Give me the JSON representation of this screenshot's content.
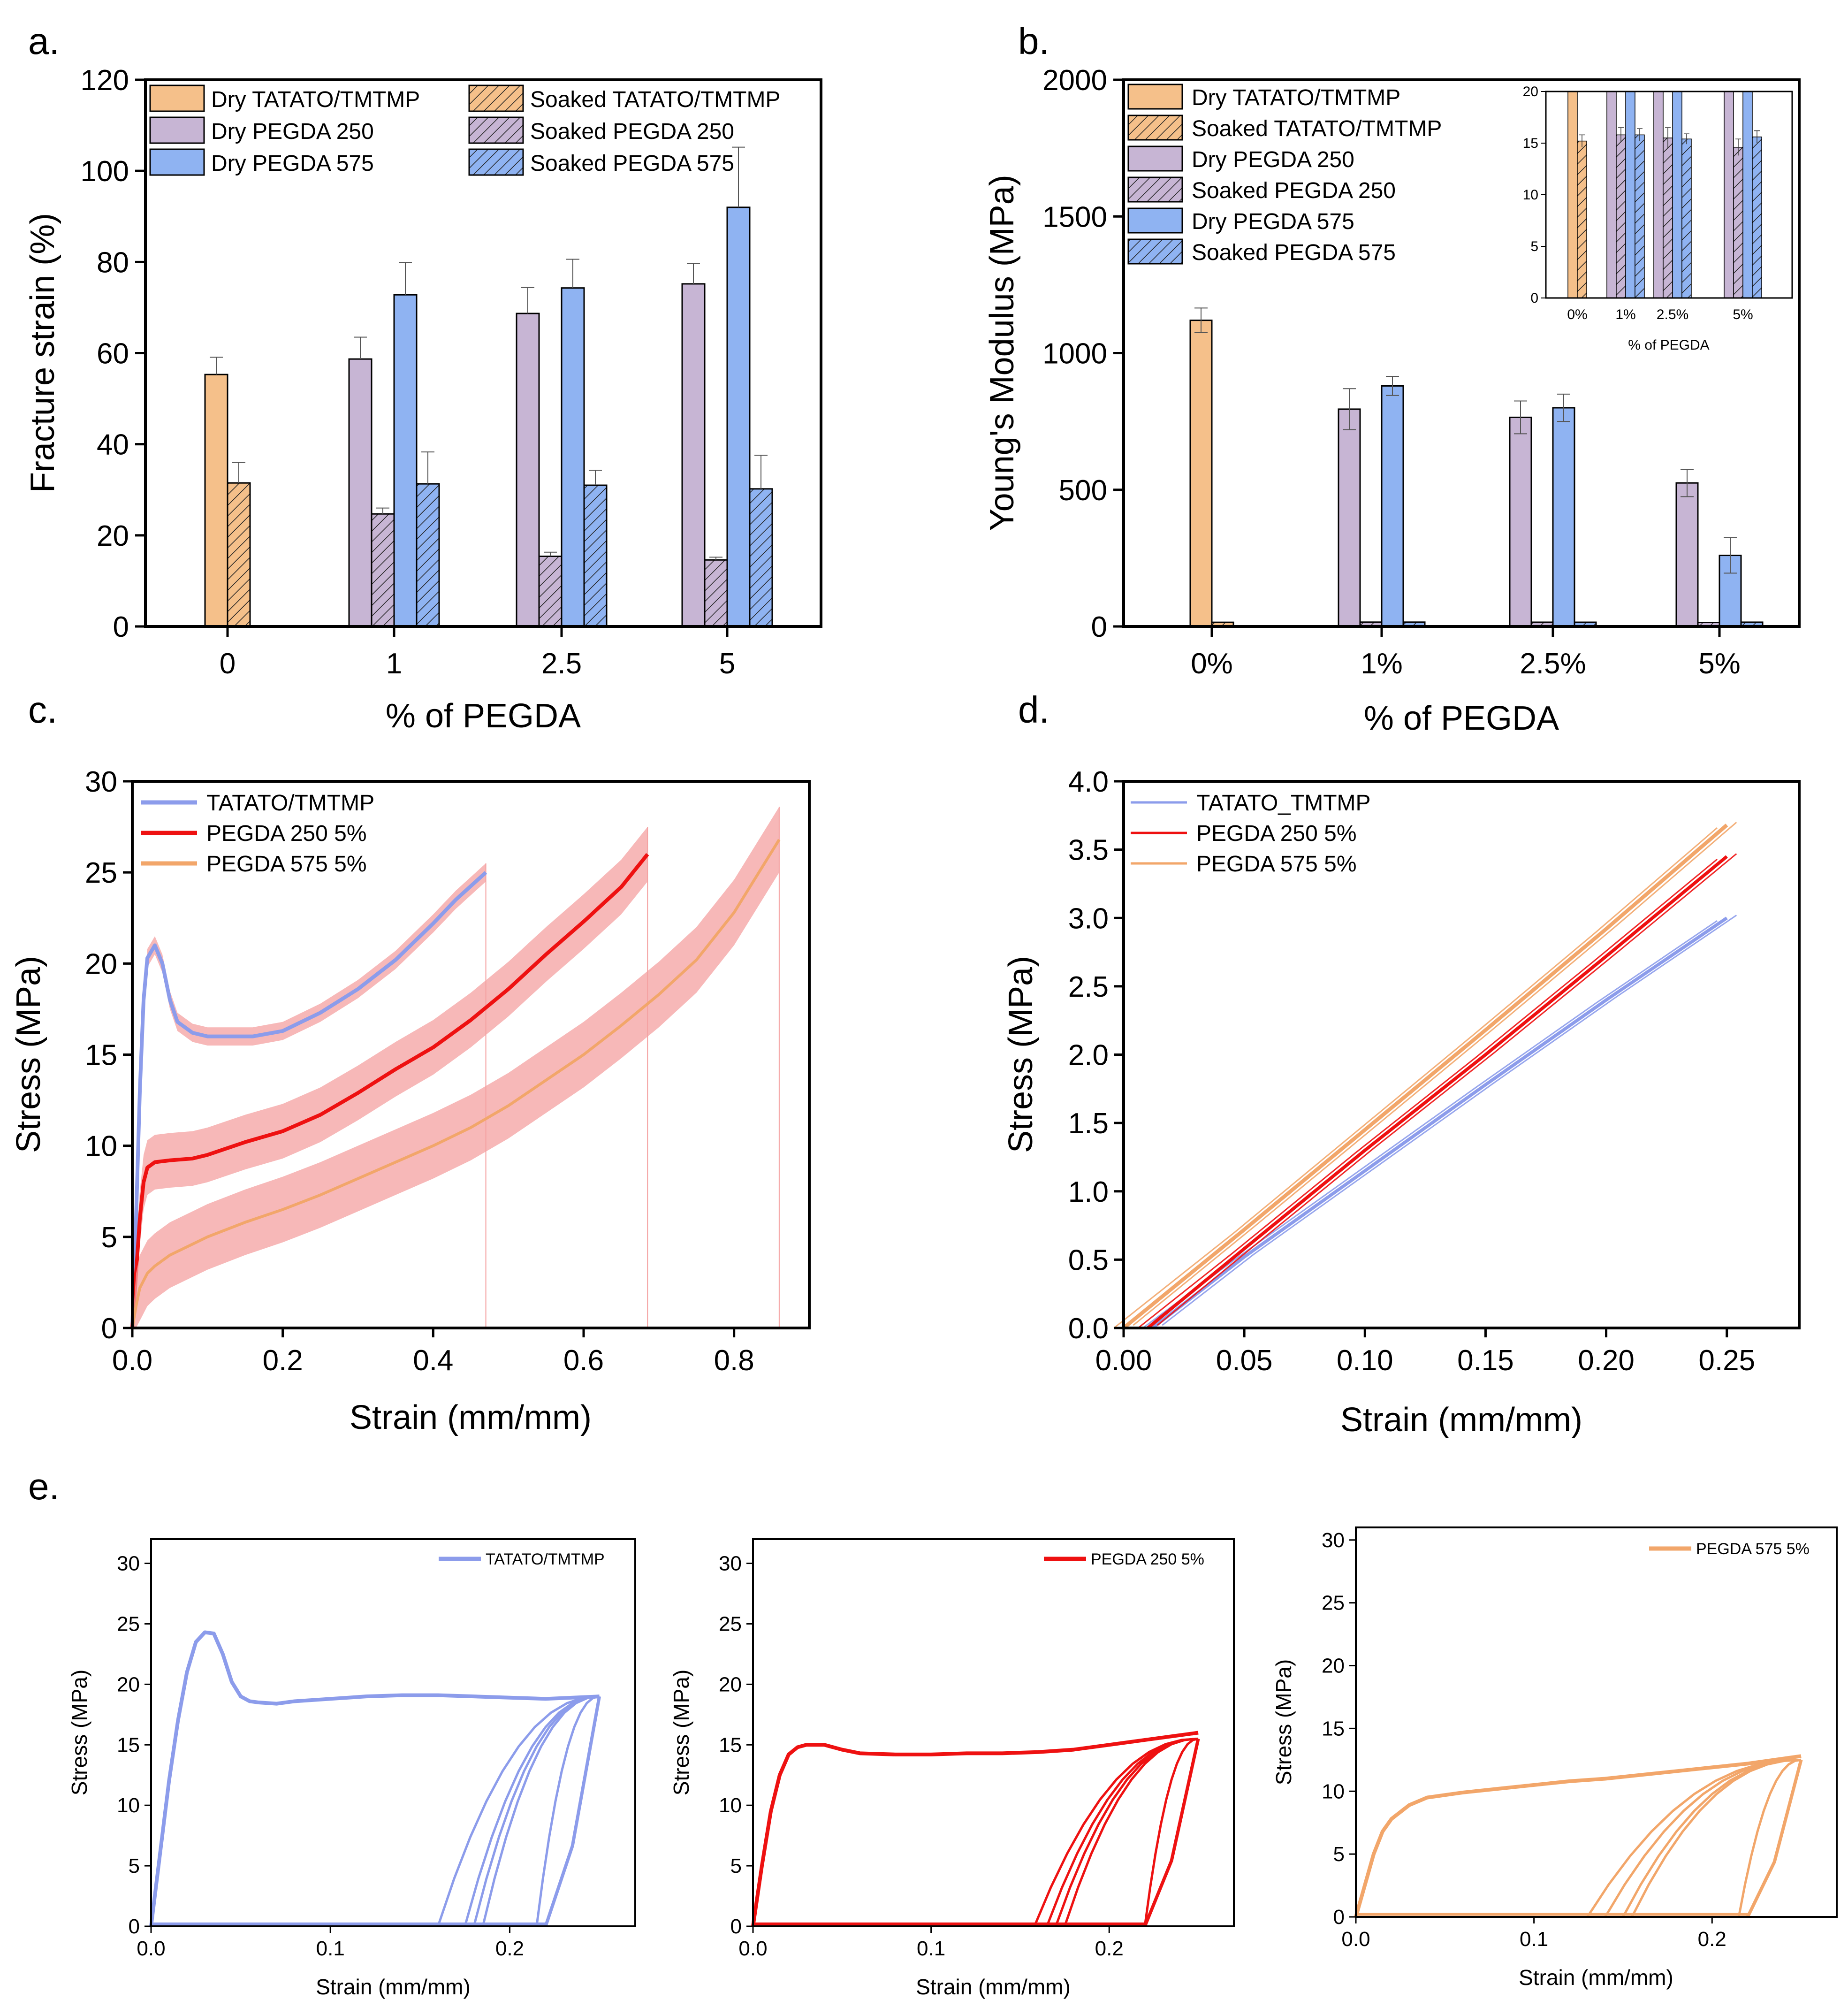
{
  "colors": {
    "tatato": "#F5C08A",
    "tatato_edge": "#9a6a3a",
    "peg250": "#C7B5D4",
    "peg250_edge": "#6a5a78",
    "peg575": "#8FB3F2",
    "peg575_edge": "#3d5f9e",
    "line_tatato": "#8C9CEB",
    "line_peg250": "#EE1111",
    "line_peg575": "#F2A66A",
    "band": "#F4A0A0",
    "axis": "#000000"
  },
  "chart_data": [
    {
      "id": "a",
      "panel_label": "a.",
      "type": "bar",
      "xlabel": "% of PEGDA",
      "ylabel": "Fracture strain (%)",
      "ylim": [
        0,
        120
      ],
      "yticks": [
        "0",
        "20",
        "40",
        "60",
        "80",
        "100",
        "120"
      ],
      "categories": [
        "0",
        "1",
        "2.5",
        "5"
      ],
      "legend": {
        "left": [
          "Dry TATATO/TMTMP",
          "Dry PEGDA 250",
          "Dry PEGDA 575"
        ],
        "right": [
          "Soaked TATATO/TMTMP",
          "Soaked PEGDA 250",
          "Soaked PEGDA 575"
        ]
      },
      "series": [
        {
          "name": "Dry TATATO/TMTMP",
          "values": [
            55.3,
            null,
            null,
            null
          ],
          "errors": [
            3.8,
            null,
            null,
            null
          ]
        },
        {
          "name": "Soaked TATATO/TMTMP",
          "values": [
            31.5,
            null,
            null,
            null
          ],
          "errors": [
            4.5,
            null,
            null,
            null
          ]
        },
        {
          "name": "Dry PEGDA 250",
          "values": [
            null,
            58.7,
            68.7,
            75.2
          ],
          "errors": [
            null,
            4.8,
            5.7,
            4.5
          ]
        },
        {
          "name": "Soaked PEGDA 250",
          "values": [
            null,
            24.7,
            15.4,
            14.6
          ],
          "errors": [
            null,
            1.3,
            0.9,
            0.6
          ]
        },
        {
          "name": "Dry PEGDA 575",
          "values": [
            null,
            72.8,
            74.3,
            92.0
          ],
          "errors": [
            null,
            7.1,
            6.3,
            13.2
          ]
        },
        {
          "name": "Soaked PEGDA 575",
          "values": [
            null,
            31.3,
            31.0,
            30.2
          ],
          "errors": [
            null,
            7.0,
            3.3,
            7.4
          ]
        }
      ]
    },
    {
      "id": "b",
      "panel_label": "b.",
      "type": "bar",
      "xlabel": "% of PEGDA",
      "ylabel": "Young's Modulus (MPa)",
      "ylim": [
        0,
        2000
      ],
      "yticks": [
        "0",
        "500",
        "1000",
        "1500",
        "2000"
      ],
      "categories": [
        "0%",
        "1%",
        "2.5%",
        "5%"
      ],
      "legend": [
        "Dry TATATO/TMTMP",
        "Soaked TATATO/TMTMP",
        "Dry PEGDA 250",
        "Soaked PEGDA 250",
        "Dry PEGDA 575",
        "Soaked PEGDA 575"
      ],
      "series": [
        {
          "name": "Dry TATATO/TMTMP",
          "values": [
            1120,
            null,
            null,
            null
          ],
          "errors": [
            45,
            null,
            null,
            null
          ]
        },
        {
          "name": "Soaked TATATO/TMTMP",
          "values": [
            15.2,
            null,
            null,
            null
          ],
          "errors": [
            0.6,
            null,
            null,
            null
          ]
        },
        {
          "name": "Dry PEGDA 250",
          "values": [
            null,
            795,
            765,
            525
          ],
          "errors": [
            null,
            75,
            60,
            50
          ]
        },
        {
          "name": "Soaked PEGDA 250",
          "values": [
            null,
            15.8,
            15.5,
            14.6
          ],
          "errors": [
            null,
            0.7,
            1.0,
            0.8
          ]
        },
        {
          "name": "Dry PEGDA 575",
          "values": [
            null,
            880,
            800,
            260
          ],
          "errors": [
            null,
            35,
            50,
            65
          ]
        },
        {
          "name": "Soaked PEGDA 575",
          "values": [
            null,
            15.8,
            15.4,
            15.6
          ],
          "errors": [
            null,
            0.6,
            0.5,
            0.6
          ]
        }
      ],
      "inset": {
        "xlabel": "% of PEGDA",
        "ylim": [
          0,
          20
        ],
        "yticks": [
          "0",
          "5",
          "10",
          "15",
          "20"
        ],
        "categories": [
          "0%",
          "1%",
          "2.5%",
          "5%"
        ]
      }
    },
    {
      "id": "c",
      "panel_label": "c.",
      "type": "line",
      "xlabel": "Strain (mm/mm)",
      "ylabel": "Stress (MPa)",
      "xlim": [
        0,
        0.9
      ],
      "ylim": [
        0,
        30
      ],
      "xticks": [
        "0.0",
        "0.2",
        "0.4",
        "0.6",
        "0.8"
      ],
      "yticks": [
        "0",
        "5",
        "10",
        "15",
        "20",
        "25",
        "30"
      ],
      "series": [
        {
          "name": "TATATO/TMTMP",
          "band": 0.5,
          "x": [
            0,
            0.005,
            0.01,
            0.015,
            0.02,
            0.03,
            0.04,
            0.05,
            0.06,
            0.08,
            0.1,
            0.13,
            0.16,
            0.2,
            0.25,
            0.3,
            0.35,
            0.4,
            0.43,
            0.47
          ],
          "y": [
            0,
            6,
            13,
            18,
            20.3,
            21,
            20,
            18,
            16.8,
            16.2,
            16.0,
            16.0,
            16.0,
            16.3,
            17.3,
            18.6,
            20.2,
            22.2,
            23.5,
            25.0
          ]
        },
        {
          "name": "PEGDA 250 5%",
          "band": 1.5,
          "x": [
            0,
            0.005,
            0.01,
            0.015,
            0.02,
            0.03,
            0.05,
            0.08,
            0.1,
            0.15,
            0.2,
            0.25,
            0.3,
            0.35,
            0.4,
            0.45,
            0.5,
            0.55,
            0.6,
            0.65,
            0.685
          ],
          "y": [
            0,
            3,
            6,
            8,
            8.8,
            9.1,
            9.2,
            9.3,
            9.5,
            10.2,
            10.8,
            11.7,
            12.9,
            14.2,
            15.4,
            16.9,
            18.6,
            20.5,
            22.3,
            24.2,
            26.0
          ]
        },
        {
          "name": "PEGDA 575 5%",
          "band": 1.8,
          "x": [
            0,
            0.005,
            0.01,
            0.02,
            0.03,
            0.05,
            0.08,
            0.1,
            0.15,
            0.2,
            0.25,
            0.3,
            0.35,
            0.4,
            0.45,
            0.5,
            0.55,
            0.6,
            0.65,
            0.7,
            0.75,
            0.8,
            0.86
          ],
          "y": [
            0,
            1.2,
            2.2,
            3.0,
            3.4,
            4.0,
            4.6,
            5.0,
            5.8,
            6.5,
            7.3,
            8.2,
            9.1,
            10.0,
            11.0,
            12.2,
            13.6,
            15.0,
            16.6,
            18.3,
            20.2,
            22.8,
            26.8
          ]
        }
      ]
    },
    {
      "id": "d",
      "panel_label": "d.",
      "type": "line",
      "xlabel": "Strain (mm/mm)",
      "ylabel": "Stress (MPa)",
      "xlim": [
        0,
        0.28
      ],
      "ylim": [
        0,
        4
      ],
      "xticks": [
        "0.00",
        "0.05",
        "0.10",
        "0.15",
        "0.20",
        "0.25"
      ],
      "yticks": [
        "0.0",
        "0.5",
        "1.0",
        "1.5",
        "2.0",
        "2.5",
        "3.0",
        "3.5",
        "4.0"
      ],
      "series": [
        {
          "name": "TATATO_TMTMP",
          "x": [
            0.012,
            0.05,
            0.1,
            0.15,
            0.2,
            0.25
          ],
          "y": [
            0,
            0.52,
            1.15,
            1.78,
            2.4,
            3.0
          ]
        },
        {
          "name": "PEGDA 250 5%",
          "x": [
            0.01,
            0.05,
            0.1,
            0.15,
            0.2,
            0.25
          ],
          "y": [
            0,
            0.58,
            1.3,
            2.0,
            2.72,
            3.45
          ]
        },
        {
          "name": "PEGDA 575 5%",
          "x": [
            0.0,
            0.05,
            0.1,
            0.15,
            0.2,
            0.25
          ],
          "y": [
            0,
            0.72,
            1.45,
            2.18,
            2.92,
            3.68
          ]
        }
      ]
    },
    {
      "id": "e",
      "panel_label": "e.",
      "type": "line",
      "subplots": [
        {
          "name": "TATATO/TMTMP",
          "xlabel": "Strain (mm/mm)",
          "ylabel": "Stress (MPa)",
          "xlim": [
            0,
            0.27
          ],
          "ylim": [
            0,
            32
          ],
          "xticks": [
            "0.0",
            "0.1",
            "0.2"
          ],
          "yticks": [
            "0",
            "5",
            "10",
            "15",
            "20",
            "25",
            "30"
          ],
          "x": [
            0,
            0.005,
            0.01,
            0.015,
            0.02,
            0.025,
            0.03,
            0.035,
            0.04,
            0.045,
            0.05,
            0.055,
            0.06,
            0.07,
            0.08,
            0.1,
            0.12,
            0.14,
            0.16,
            0.18,
            0.2,
            0.22,
            0.25
          ],
          "y": [
            0,
            6,
            12,
            17,
            21,
            23.5,
            24.3,
            24.2,
            22.5,
            20.2,
            19.0,
            18.6,
            18.5,
            18.4,
            18.6,
            18.8,
            19.0,
            19.1,
            19.1,
            19.0,
            18.9,
            18.8,
            19.0
          ],
          "unload_start": [
            0.16,
            0.175,
            0.18,
            0.185,
            0.215
          ],
          "peak": 19.0
        },
        {
          "name": "PEGDA 250 5%",
          "xlabel": "Strain (mm/mm)",
          "ylabel": "Stress (MPa)",
          "xlim": [
            0,
            0.27
          ],
          "ylim": [
            0,
            32
          ],
          "xticks": [
            "0.0",
            "0.1",
            "0.2"
          ],
          "yticks": [
            "0",
            "5",
            "10",
            "15",
            "20",
            "25",
            "30"
          ],
          "x": [
            0,
            0.005,
            0.01,
            0.015,
            0.02,
            0.025,
            0.03,
            0.04,
            0.05,
            0.06,
            0.08,
            0.1,
            0.12,
            0.14,
            0.16,
            0.18,
            0.2,
            0.22,
            0.25
          ],
          "y": [
            0,
            5,
            9.5,
            12.5,
            14.2,
            14.8,
            15.0,
            15.0,
            14.6,
            14.3,
            14.2,
            14.2,
            14.3,
            14.3,
            14.4,
            14.6,
            15.0,
            15.4,
            16.0
          ],
          "unload_start": [
            0.158,
            0.165,
            0.17,
            0.175,
            0.22
          ],
          "peak": 15.5
        },
        {
          "name": "PEGDA 575 5%",
          "xlabel": "Strain (mm/mm)",
          "ylabel": "Stress (MPa)",
          "xlim": [
            0,
            0.27
          ],
          "ylim": [
            0,
            31
          ],
          "xticks": [
            "0.0",
            "0.1",
            "0.2"
          ],
          "yticks": [
            "0",
            "5",
            "10",
            "15",
            "20",
            "25",
            "30"
          ],
          "x": [
            0,
            0.005,
            0.01,
            0.015,
            0.02,
            0.03,
            0.04,
            0.06,
            0.08,
            0.1,
            0.12,
            0.14,
            0.16,
            0.18,
            0.2,
            0.22,
            0.25
          ],
          "y": [
            0,
            2.5,
            5,
            6.8,
            7.8,
            8.9,
            9.5,
            9.9,
            10.2,
            10.5,
            10.8,
            11.0,
            11.3,
            11.6,
            11.9,
            12.2,
            12.8
          ],
          "unload_start": [
            0.13,
            0.14,
            0.15,
            0.155,
            0.215
          ],
          "peak": 12.5
        }
      ]
    }
  ]
}
